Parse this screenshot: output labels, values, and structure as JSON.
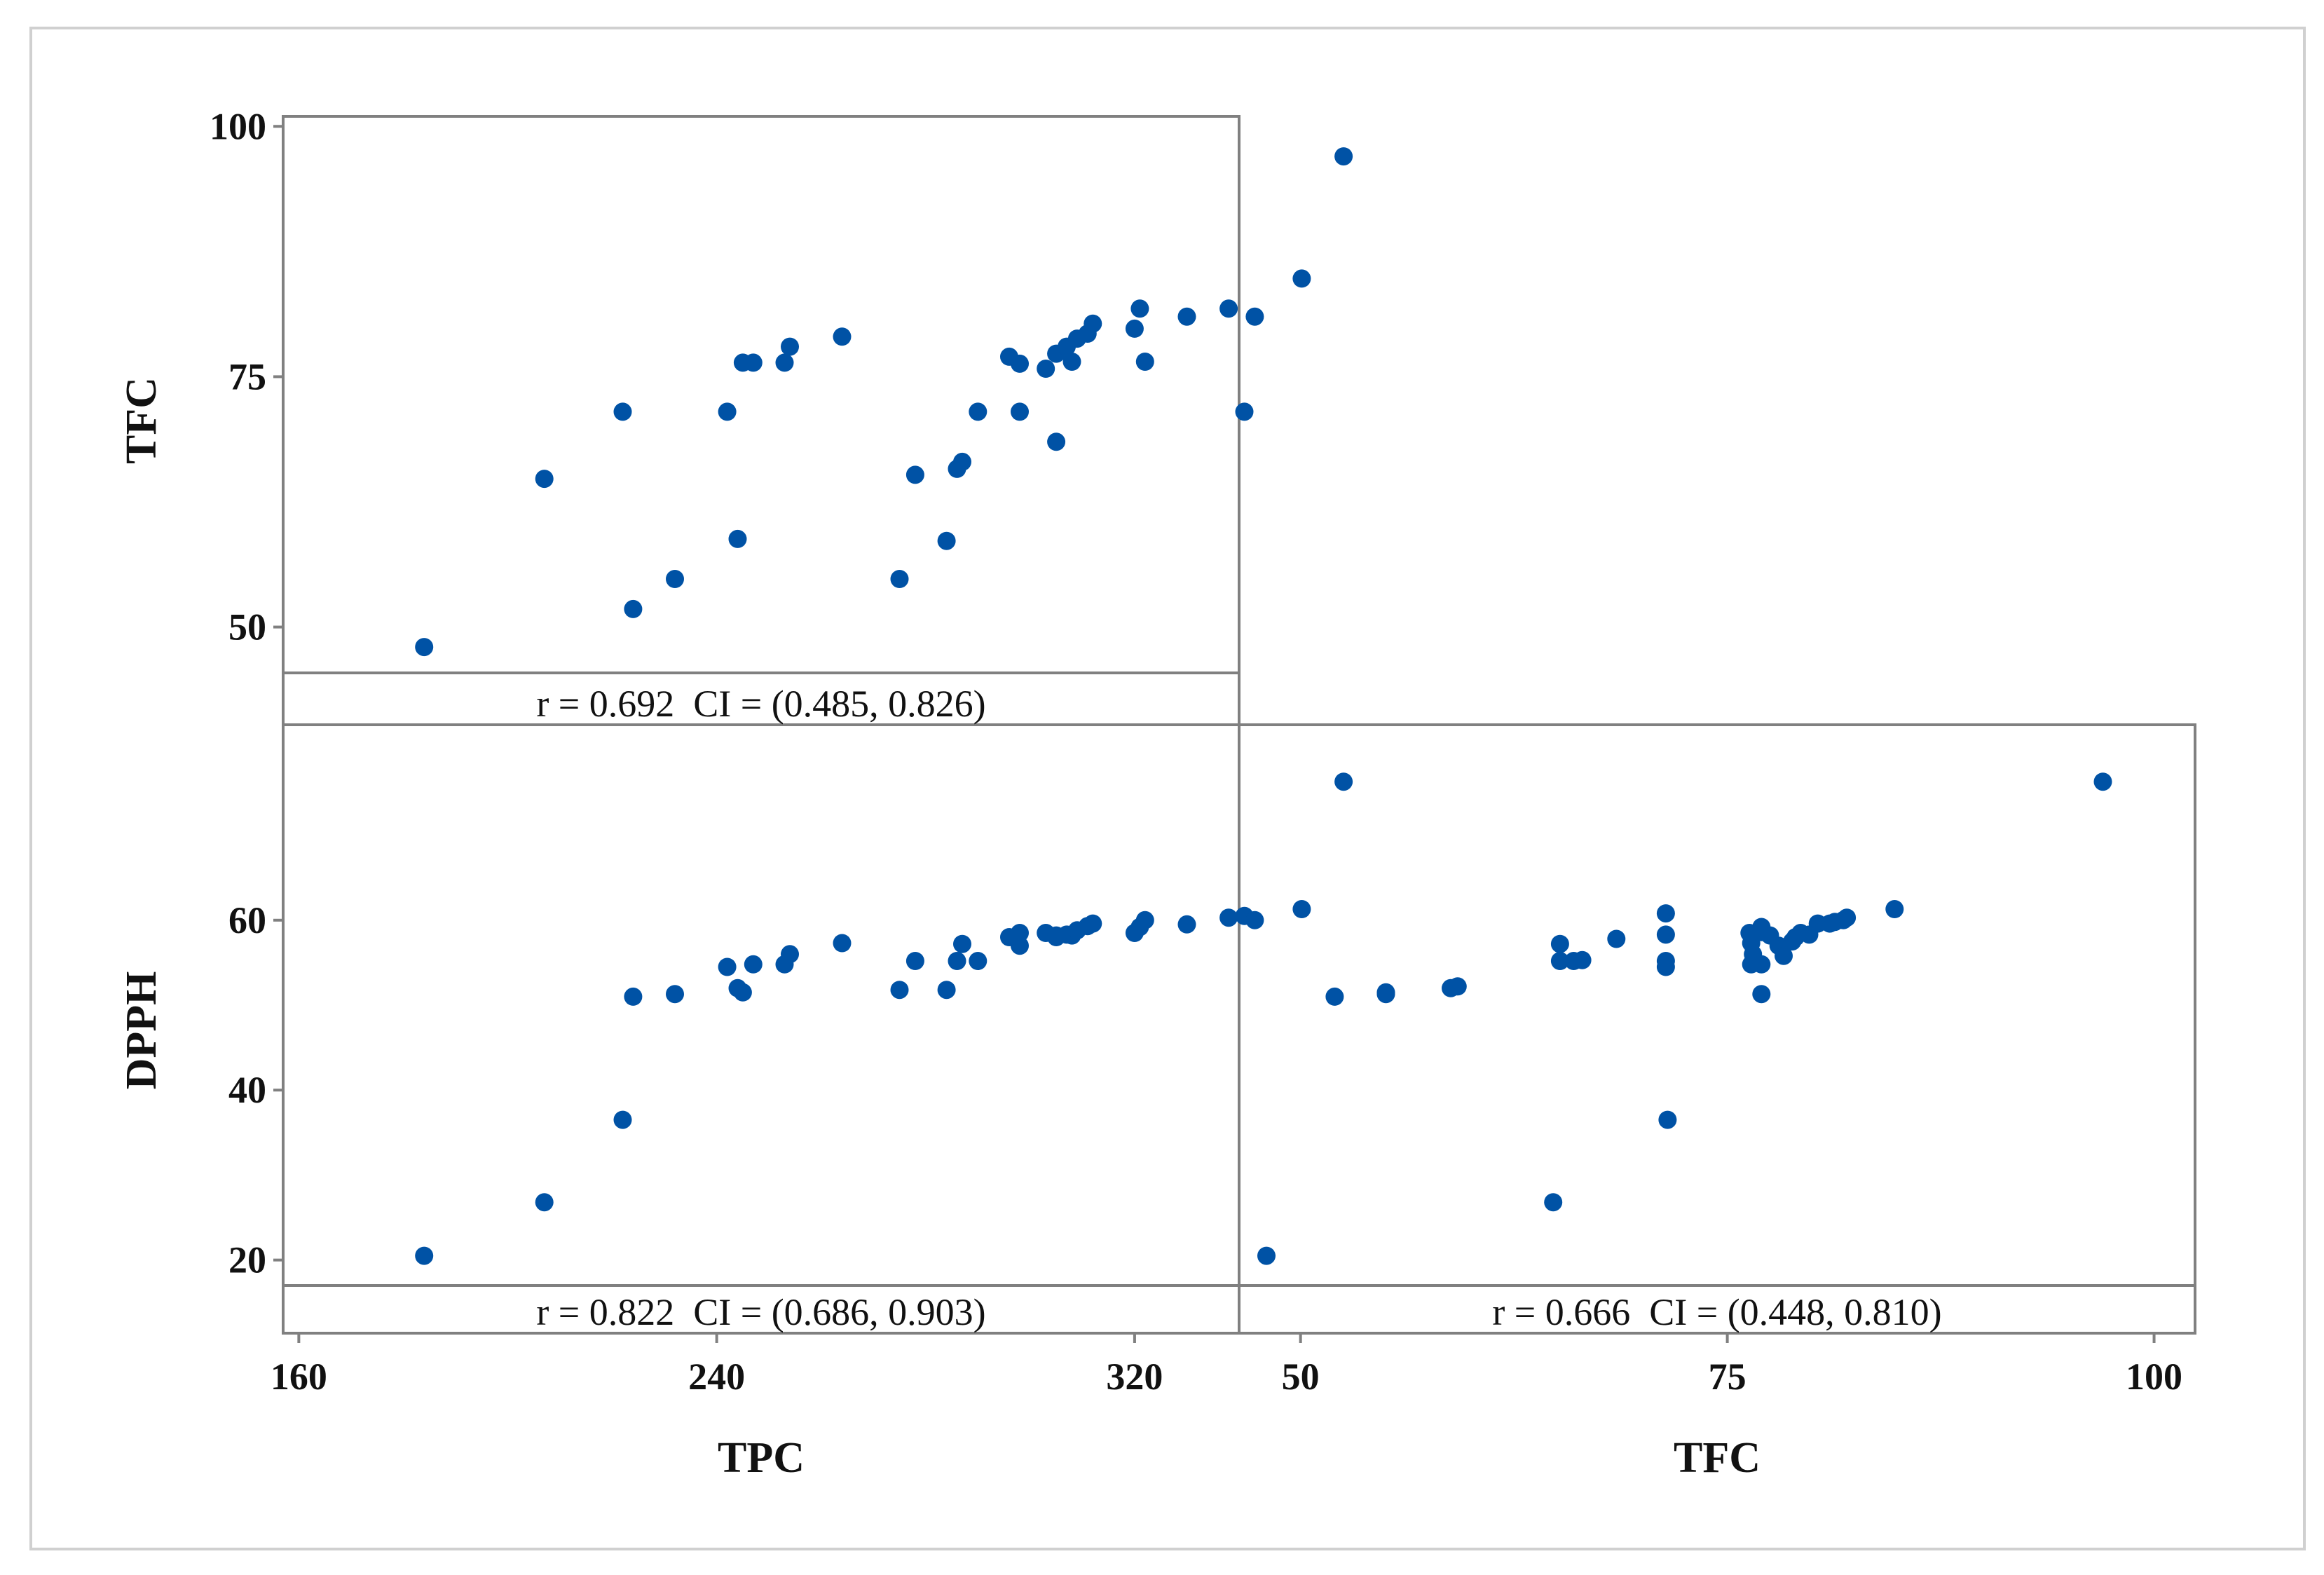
{
  "chart_data": [
    {
      "type": "scatter",
      "panel": "TPC-vs-TFC",
      "xlabel": "TPC",
      "ylabel": "TFC",
      "xlim": [
        157,
        340
      ],
      "ylim": [
        45,
        101
      ],
      "xticks": [
        160,
        240,
        320
      ],
      "yticks": [
        50,
        75,
        100
      ],
      "x_tick_labels": [
        "160",
        "240",
        "320"
      ],
      "y_tick_labels": [
        "50",
        "75",
        "100"
      ],
      "annotation": "r = 0.692  CI = (0.485, 0.826)",
      "color": "#0052a5",
      "points": [
        [
          184,
          48
        ],
        [
          207,
          64.8
        ],
        [
          222,
          71.5
        ],
        [
          224,
          51.8
        ],
        [
          232,
          54.8
        ],
        [
          242,
          71.5
        ],
        [
          244,
          58.8
        ],
        [
          245,
          76.4
        ],
        [
          247,
          76.4
        ],
        [
          253,
          76.4
        ],
        [
          254,
          78
        ],
        [
          264,
          79
        ],
        [
          275,
          54.8
        ],
        [
          278,
          65.2
        ],
        [
          284,
          58.6
        ],
        [
          286,
          65.8
        ],
        [
          287,
          66.5
        ],
        [
          290,
          71.5
        ],
        [
          296,
          77
        ],
        [
          298,
          71.5
        ],
        [
          298,
          76.3
        ],
        [
          303,
          75.8
        ],
        [
          305,
          68.5
        ],
        [
          305,
          77.3
        ],
        [
          307,
          78
        ],
        [
          308,
          76.5
        ],
        [
          309,
          78.8
        ],
        [
          311,
          79.3
        ],
        [
          312,
          80.3
        ],
        [
          320,
          79.8
        ],
        [
          321,
          81.8
        ],
        [
          322,
          76.5
        ],
        [
          330,
          81
        ],
        [
          338,
          81.8
        ],
        [
          341,
          71.5
        ],
        [
          343,
          81
        ],
        [
          352,
          84.8
        ],
        [
          360,
          97
        ]
      ]
    },
    {
      "type": "scatter",
      "panel": "TPC-vs-DPPH",
      "xlabel": "TPC",
      "ylabel": "DPPH",
      "xlim": [
        157,
        340
      ],
      "ylim": [
        17,
        83
      ],
      "xticks": [
        160,
        240,
        320
      ],
      "yticks": [
        20,
        40,
        60
      ],
      "x_tick_labels": [
        "160",
        "240",
        "320"
      ],
      "y_tick_labels": [
        "20",
        "40",
        "60"
      ],
      "annotation": "r = 0.822  CI = (0.686, 0.903)",
      "color": "#0052a5",
      "points": [
        [
          184,
          20.5
        ],
        [
          207,
          26.8
        ],
        [
          222,
          36.5
        ],
        [
          224,
          51
        ],
        [
          232,
          51.3
        ],
        [
          242,
          54.5
        ],
        [
          244,
          52
        ],
        [
          245,
          51.5
        ],
        [
          247,
          54.8
        ],
        [
          253,
          54.8
        ],
        [
          254,
          56
        ],
        [
          264,
          57.3
        ],
        [
          275,
          51.8
        ],
        [
          278,
          55.2
        ],
        [
          284,
          51.8
        ],
        [
          286,
          55.2
        ],
        [
          287,
          57.2
        ],
        [
          290,
          55.2
        ],
        [
          296,
          58
        ],
        [
          298,
          57
        ],
        [
          298,
          58.5
        ],
        [
          303,
          58.5
        ],
        [
          305,
          58.2
        ],
        [
          305,
          58
        ],
        [
          307,
          58.3
        ],
        [
          308,
          58.2
        ],
        [
          309,
          58.8
        ],
        [
          311,
          59.3
        ],
        [
          312,
          59.6
        ],
        [
          320,
          58.5
        ],
        [
          321,
          59.2
        ],
        [
          322,
          60
        ],
        [
          330,
          59.5
        ],
        [
          338,
          60.3
        ],
        [
          341,
          60.5
        ],
        [
          343,
          60
        ],
        [
          352,
          61.3
        ],
        [
          360,
          76.3
        ]
      ]
    },
    {
      "type": "scatter",
      "panel": "TFC-vs-DPPH",
      "xlabel": "TFC",
      "ylabel": "DPPH",
      "xlim": [
        46.4,
        102.4
      ],
      "ylim": [
        17,
        83
      ],
      "xticks": [
        50,
        75,
        100
      ],
      "yticks": [
        20,
        40,
        60
      ],
      "x_tick_labels": [
        "50",
        "75",
        "100"
      ],
      "y_tick_labels": [
        "20",
        "40",
        "60"
      ],
      "annotation": "r = 0.666  CI = (0.448, 0.810)",
      "color": "#0052a5",
      "points": [
        [
          48,
          20.5
        ],
        [
          52,
          51
        ],
        [
          55,
          51.5
        ],
        [
          55,
          51.3
        ],
        [
          58.8,
          52
        ],
        [
          59.2,
          52.2
        ],
        [
          64.8,
          26.8
        ],
        [
          65.2,
          55.2
        ],
        [
          65.2,
          57.2
        ],
        [
          66,
          55.2
        ],
        [
          66.5,
          55.3
        ],
        [
          68.5,
          57.8
        ],
        [
          71.4,
          60.8
        ],
        [
          71.4,
          58.3
        ],
        [
          71.4,
          55.2
        ],
        [
          71.4,
          54.5
        ],
        [
          71.5,
          36.5
        ],
        [
          76.3,
          58.5
        ],
        [
          76.4,
          57.3
        ],
        [
          76.4,
          54.8
        ],
        [
          76.5,
          56
        ],
        [
          77,
          58.6
        ],
        [
          77,
          59.2
        ],
        [
          77,
          54.8
        ],
        [
          77,
          51.3
        ],
        [
          77.5,
          58.2
        ],
        [
          78,
          57
        ],
        [
          78.3,
          55.8
        ],
        [
          78.8,
          57.5
        ],
        [
          79,
          58
        ],
        [
          79.3,
          58.5
        ],
        [
          79.8,
          58.3
        ],
        [
          80.3,
          59.6
        ],
        [
          81,
          59.6
        ],
        [
          81.3,
          59.8
        ],
        [
          81.8,
          60
        ],
        [
          82,
          60.3
        ],
        [
          84.8,
          61.3
        ],
        [
          97,
          76.3
        ]
      ]
    }
  ]
}
